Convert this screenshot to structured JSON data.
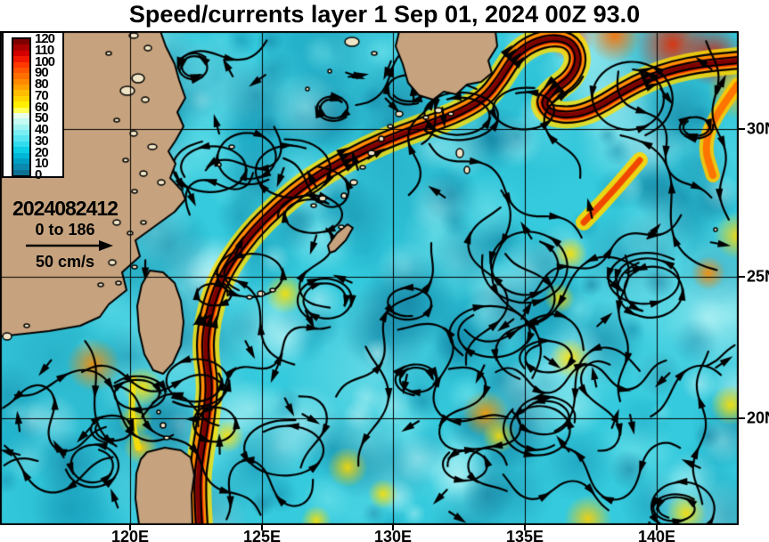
{
  "title": "Speed/currents layer 1 Sep 01, 2024 00Z 93.0",
  "colorbar": {
    "tick_labels": [
      "120",
      "110",
      "100",
      "90",
      "80",
      "70",
      "60",
      "50",
      "40",
      "30",
      "20",
      "10",
      "0"
    ],
    "segment_colors": [
      "#7E0000",
      "#AA0000",
      "#D40000",
      "#F01800",
      "#FF3800",
      "#FF5400",
      "#FF6F00",
      "#FF8900",
      "#FFA200",
      "#FFBC00",
      "#FFD500",
      "#FFEE00",
      "#FFFF55",
      "#E9FEEA",
      "#C4FAF3",
      "#9FF4F3",
      "#7BEEF3",
      "#56E6F2",
      "#31DCEF",
      "#0DCDE5",
      "#00B7D7",
      "#00A0C5",
      "#0B89AE",
      "#0D7092"
    ]
  },
  "annotation": {
    "run_id": "2024082412",
    "vector_range": "0 to 186",
    "vector_scale": "50 cm/s"
  },
  "axis": {
    "lon_labels": [
      "120E",
      "125E",
      "130E",
      "135E",
      "140E"
    ],
    "lat_labels": [
      "30N",
      "25N",
      "20N"
    ]
  },
  "colors": {
    "land": "#C6A37E",
    "land_islet": "#F0E4C6",
    "ocean": "#35CADD",
    "current_core": "#7E0000",
    "streamline": "#000000",
    "background": "#FFFFFF"
  }
}
